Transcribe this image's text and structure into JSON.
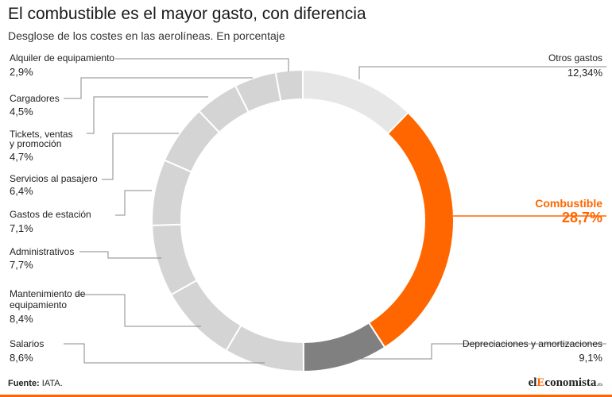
{
  "header": {
    "title": "El combustible es el mayor gasto, con diferencia",
    "subtitle": "Desglose de los costes en las aerolíneas. En porcentaje"
  },
  "footer": {
    "source_label": "Fuente:",
    "source_text": " IATA.",
    "brand_prefix": "el",
    "brand_highlight": "E",
    "brand_rest": "conomista",
    "brand_suffix": ".es"
  },
  "colors": {
    "highlight": "#ff6600",
    "segment": "#d4d4d4",
    "segment_light": "#e6e6e6",
    "segment_dark": "#808080",
    "leader": "#8a8a8a"
  },
  "chart_data": {
    "type": "pie",
    "donut": true,
    "title": "El combustible es el mayor gasto, con diferencia",
    "subtitle": "Desglose de los costes en las aerolíneas. En porcentaje",
    "unit": "%",
    "slices": [
      {
        "label": "Otros gastos",
        "value": 12.34,
        "display": "12,34%",
        "color": "#e6e6e6"
      },
      {
        "label": "Combustible",
        "value": 28.7,
        "display": "28,7%",
        "color": "#ff6600",
        "highlight": true
      },
      {
        "label": "Depreciaciones y amortizaciones",
        "value": 9.1,
        "display": "9,1%",
        "color": "#808080"
      },
      {
        "label": "Salarios",
        "value": 8.6,
        "display": "8,6%",
        "color": "#d4d4d4"
      },
      {
        "label": "Mantenimiento de equipamiento",
        "value": 8.4,
        "display": "8,4%",
        "color": "#d4d4d4"
      },
      {
        "label": "Administrativos",
        "value": 7.7,
        "display": "7,7%",
        "color": "#d4d4d4"
      },
      {
        "label": "Gastos de estación",
        "value": 7.1,
        "display": "7,1%",
        "color": "#d4d4d4"
      },
      {
        "label": "Servicios al pasajero",
        "value": 6.4,
        "display": "6,4%",
        "color": "#d4d4d4"
      },
      {
        "label": "Tickets, ventas y promoción",
        "value": 4.7,
        "display": "4,7%",
        "color": "#d4d4d4"
      },
      {
        "label": "Cargadores",
        "value": 4.5,
        "display": "4,5%",
        "color": "#d4d4d4"
      },
      {
        "label": "Alquiler de equipamiento",
        "value": 2.9,
        "display": "2,9%",
        "color": "#d4d4d4"
      }
    ]
  }
}
